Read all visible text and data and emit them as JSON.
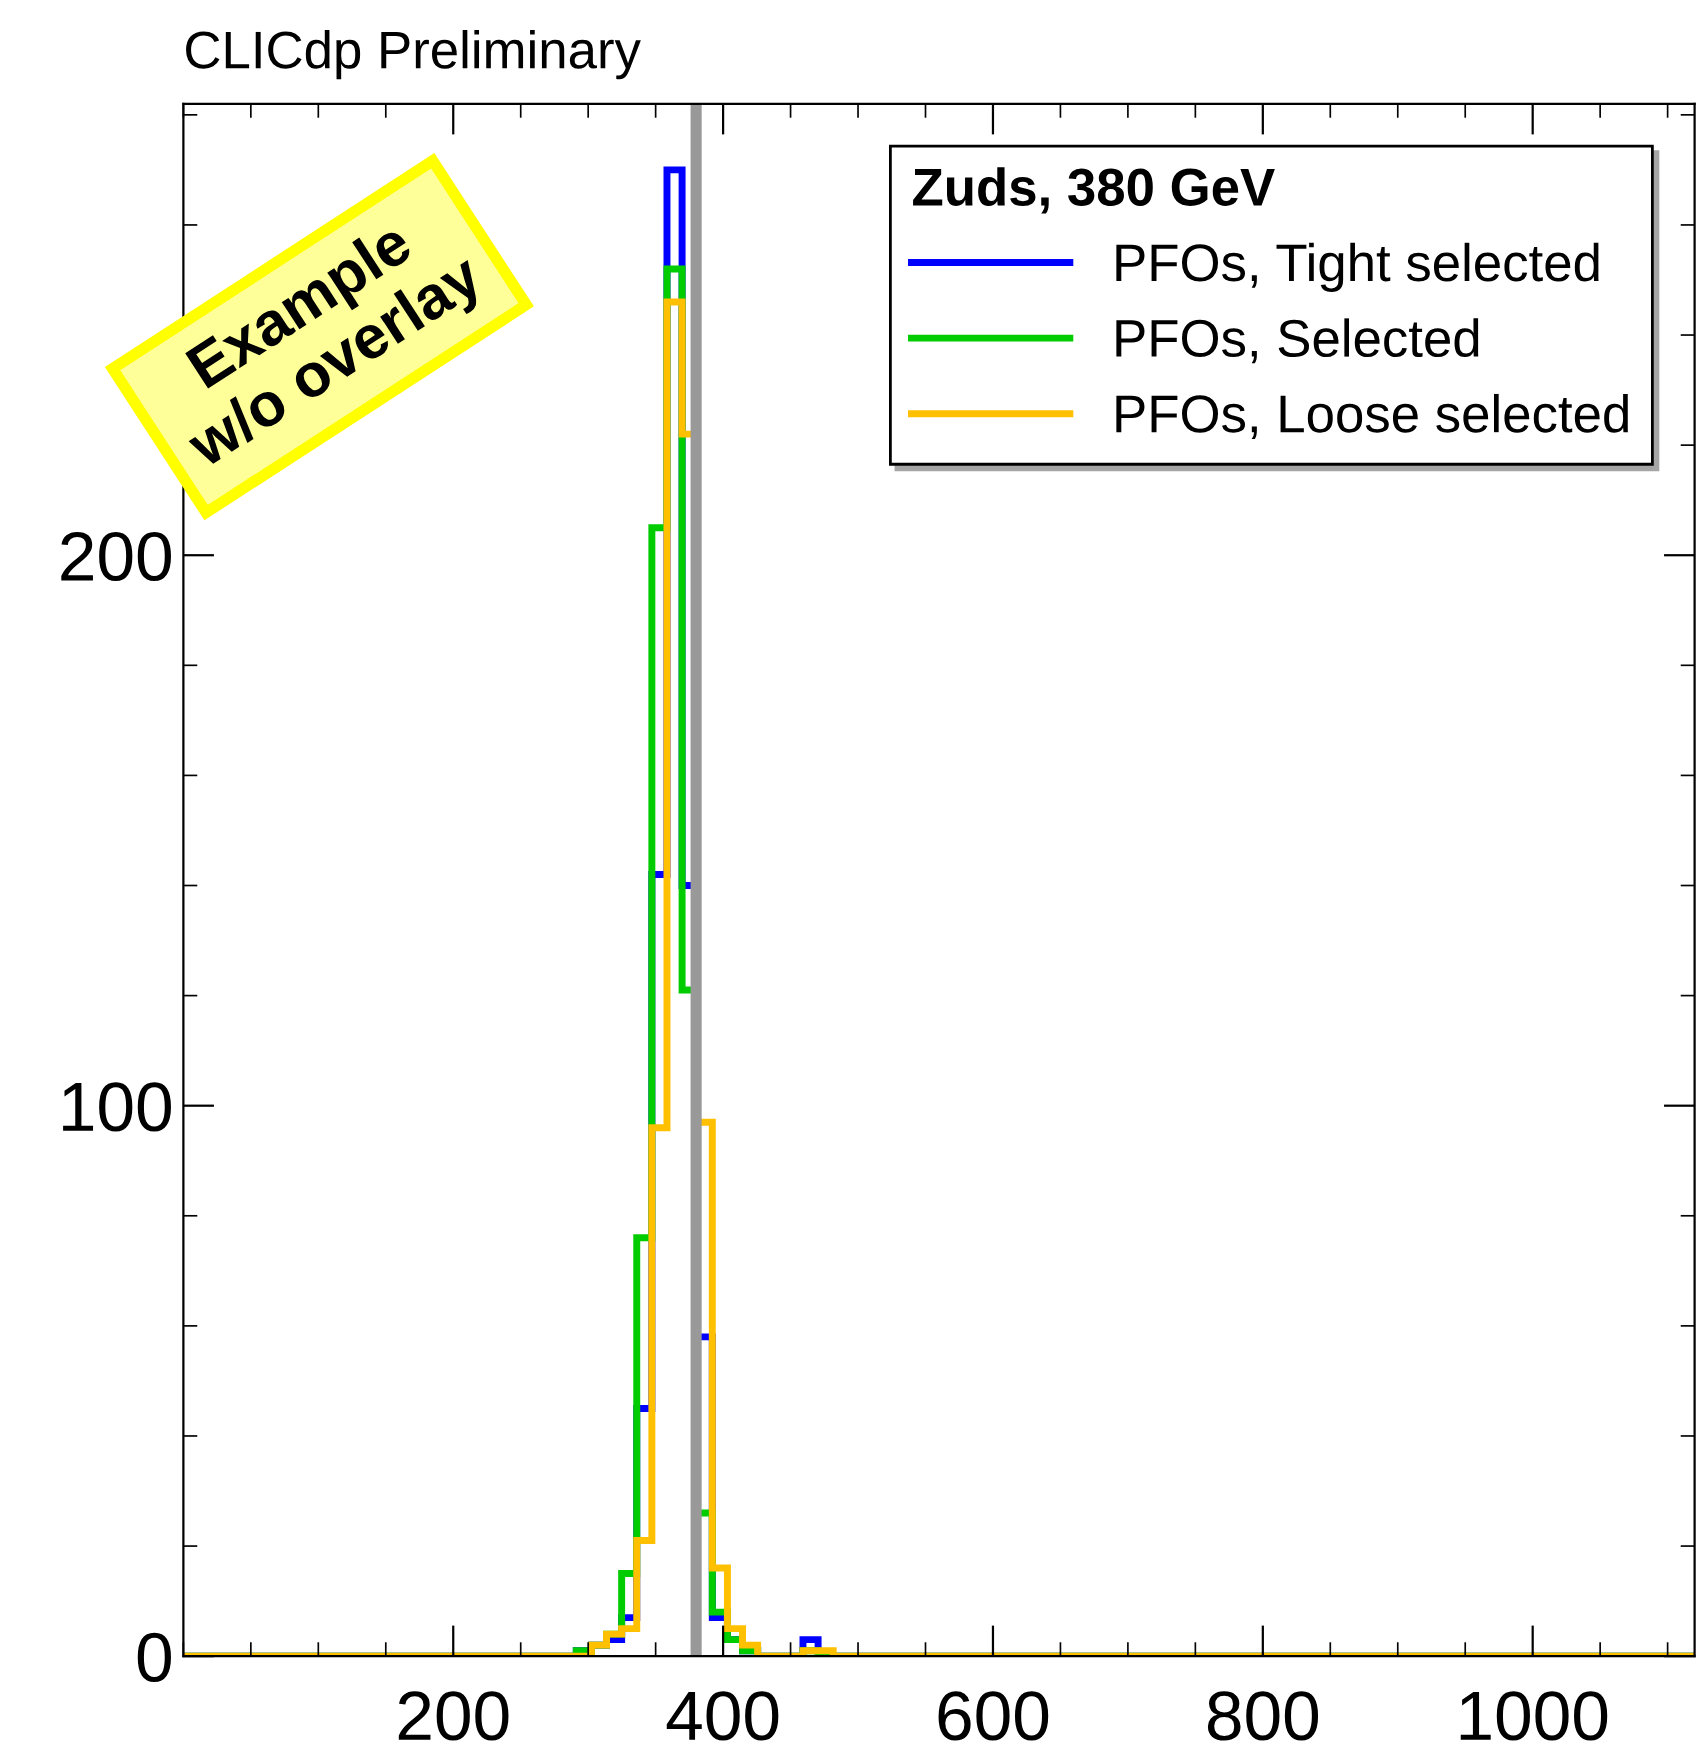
{
  "chart_data": {
    "type": "histogram",
    "title": "CLICdp Preliminary",
    "legend_title": "Zuds, 380 GeV",
    "bins": [
      0,
      291.2,
      302.4,
      313.6,
      324.8,
      336,
      347.2,
      358.4,
      369.6,
      380.8,
      392,
      403.2,
      414.4,
      425.6,
      436.8,
      448,
      459.2,
      470.4,
      481.6,
      1120
    ],
    "series": [
      {
        "name": "PFOs, Tight selected",
        "color": "#0000ff",
        "values": [
          0,
          1,
          2,
          3,
          7,
          45,
          142,
          270,
          140,
          58,
          7,
          3,
          1,
          0,
          0,
          0,
          3,
          0,
          0
        ]
      },
      {
        "name": "PFOs, Selected",
        "color": "#00cc00",
        "values": [
          0,
          1,
          2,
          4,
          15,
          76,
          205,
          252,
          121,
          26,
          8,
          3,
          1,
          0,
          0,
          0,
          1,
          0,
          0
        ]
      },
      {
        "name": "PFOs, Loose selected",
        "color": "#ffc000",
        "values": [
          0,
          0,
          2,
          4,
          5,
          21,
          96,
          246,
          222,
          97,
          16,
          5,
          2,
          0,
          0,
          0,
          1,
          1,
          0
        ]
      }
    ],
    "ref_lines": [
      {
        "axis": "x",
        "value": 380,
        "label": null,
        "color": "#999999"
      }
    ],
    "annotations": [
      "Example\nw/o overlay"
    ],
    "xlim": [
      0,
      1120
    ],
    "xticks": [
      200,
      400,
      600,
      800,
      1000
    ],
    "ylim": [
      0,
      282
    ],
    "yticks": [
      0,
      100,
      200
    ],
    "grid": false,
    "legend": "top right"
  }
}
